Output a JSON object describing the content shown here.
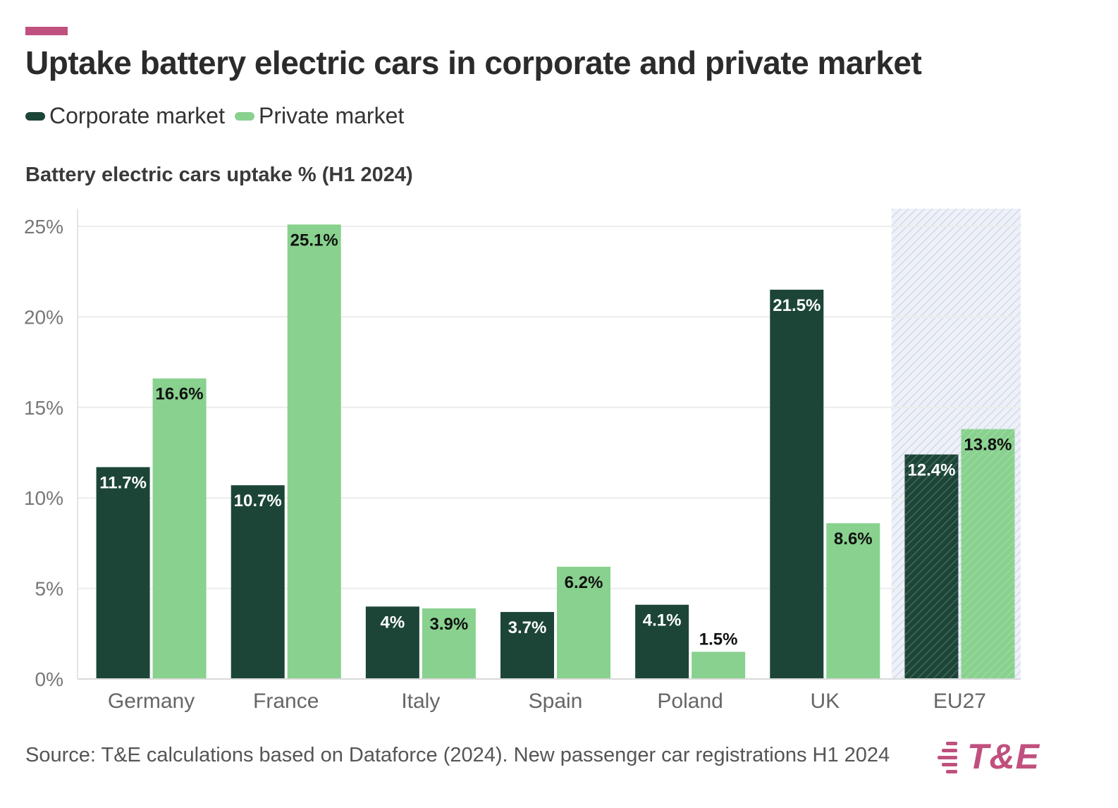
{
  "title": "Uptake battery electric cars in corporate and private market",
  "legend": {
    "corporate": "Corporate market",
    "private": "Private market"
  },
  "subtitle": "Battery electric cars uptake % (H1 2024)",
  "source": "Source: T&E calculations based on Dataforce (2024). New passenger car registrations H1 2024",
  "logo": {
    "text": "T&E"
  },
  "colors": {
    "accent": "#c0507e",
    "corporate": "#1c4538",
    "private": "#88d18e",
    "grid": "#ececec",
    "highlight": "#e6eaf5"
  },
  "chart_data": {
    "type": "bar",
    "title": "Uptake battery electric cars in corporate and private market",
    "ylabel": "Battery electric cars uptake % (H1 2024)",
    "xlabel": "",
    "categories": [
      "Germany",
      "France",
      "Italy",
      "Spain",
      "Poland",
      "UK",
      "EU27"
    ],
    "series": [
      {
        "name": "Corporate market",
        "values": [
          11.7,
          10.7,
          4,
          3.7,
          4.1,
          21.5,
          12.4
        ],
        "labels": [
          "11.7%",
          "10.7%",
          "4%",
          "3.7%",
          "4.1%",
          "21.5%",
          "12.4%"
        ]
      },
      {
        "name": "Private market",
        "values": [
          16.6,
          25.1,
          3.9,
          6.2,
          1.5,
          8.6,
          13.8
        ],
        "labels": [
          "16.6%",
          "25.1%",
          "3.9%",
          "6.2%",
          "1.5%",
          "8.6%",
          "13.8%"
        ]
      }
    ],
    "ylim": [
      0,
      25
    ],
    "yticks": [
      0,
      5,
      10,
      15,
      20,
      25
    ],
    "ytick_labels": [
      "0%",
      "5%",
      "10%",
      "15%",
      "20%",
      "25%"
    ],
    "highlighted_category": "EU27",
    "grid": true,
    "legend_position": "top-left"
  }
}
